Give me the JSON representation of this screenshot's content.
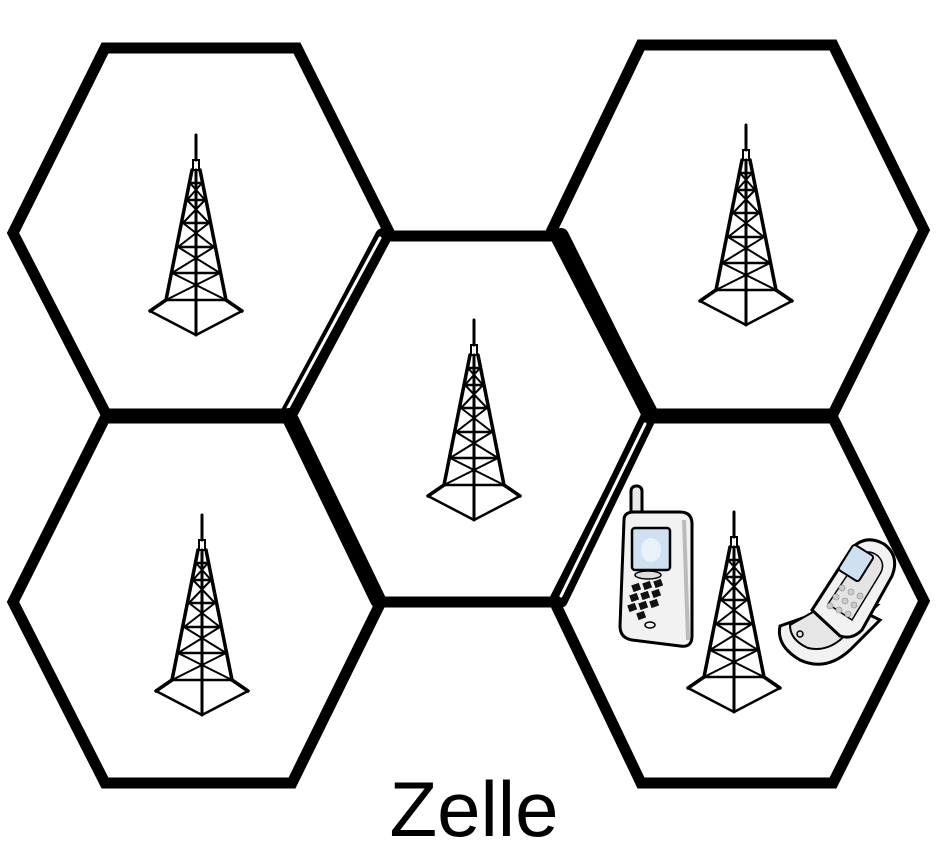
{
  "diagram": {
    "caption": "Zelle",
    "cells": [
      {
        "id": "top-left",
        "has_tower": true
      },
      {
        "id": "top-right",
        "has_tower": true
      },
      {
        "id": "center",
        "has_tower": true
      },
      {
        "id": "bottom-left",
        "has_tower": true
      },
      {
        "id": "bottom-right",
        "has_tower": true,
        "devices": [
          "mobile-phone-icon",
          "flip-phone-icon"
        ]
      }
    ],
    "icons": {
      "tower": "radio-tower-icon",
      "phone": "mobile-phone-icon",
      "flip_phone": "flip-phone-icon"
    },
    "colors": {
      "stroke": "#000000",
      "background": "#ffffff",
      "phone_fill": "#f2f2f2",
      "screen": "#cfe0f2"
    }
  }
}
